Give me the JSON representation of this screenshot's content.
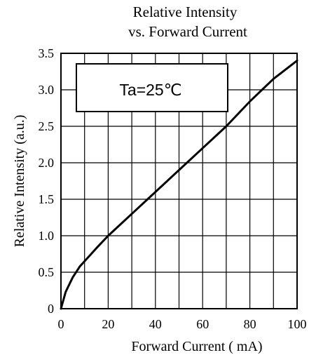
{
  "chart_data": {
    "type": "line",
    "title": [
      "Relative Intensity",
      "vs. Forward Current"
    ],
    "xlabel": "Forward Current ( mA)",
    "ylabel": "Relative Intensity  (a.u.)",
    "annotation": "Ta=25℃",
    "xlim": [
      0,
      100
    ],
    "ylim": [
      0,
      3.5
    ],
    "x_ticks": [
      "0",
      "20",
      "40",
      "60",
      "80",
      "100"
    ],
    "x_tick_values": [
      0,
      20,
      40,
      60,
      80,
      100
    ],
    "y_ticks": [
      "0",
      "0.5",
      "1.0",
      "1.5",
      "2.0",
      "2.5",
      "3.0",
      "3.5"
    ],
    "y_tick_values": [
      0,
      0.5,
      1.0,
      1.5,
      2.0,
      2.5,
      3.0,
      3.5
    ],
    "grid": true,
    "series": [
      {
        "x": [
          0,
          2,
          5,
          8,
          10,
          15,
          20,
          25,
          30,
          40,
          50,
          60,
          70,
          80,
          90,
          100
        ],
        "y": [
          0,
          0.23,
          0.43,
          0.58,
          0.65,
          0.83,
          1.0,
          1.15,
          1.3,
          1.6,
          1.9,
          2.2,
          2.5,
          2.84,
          3.15,
          3.4
        ]
      }
    ]
  }
}
